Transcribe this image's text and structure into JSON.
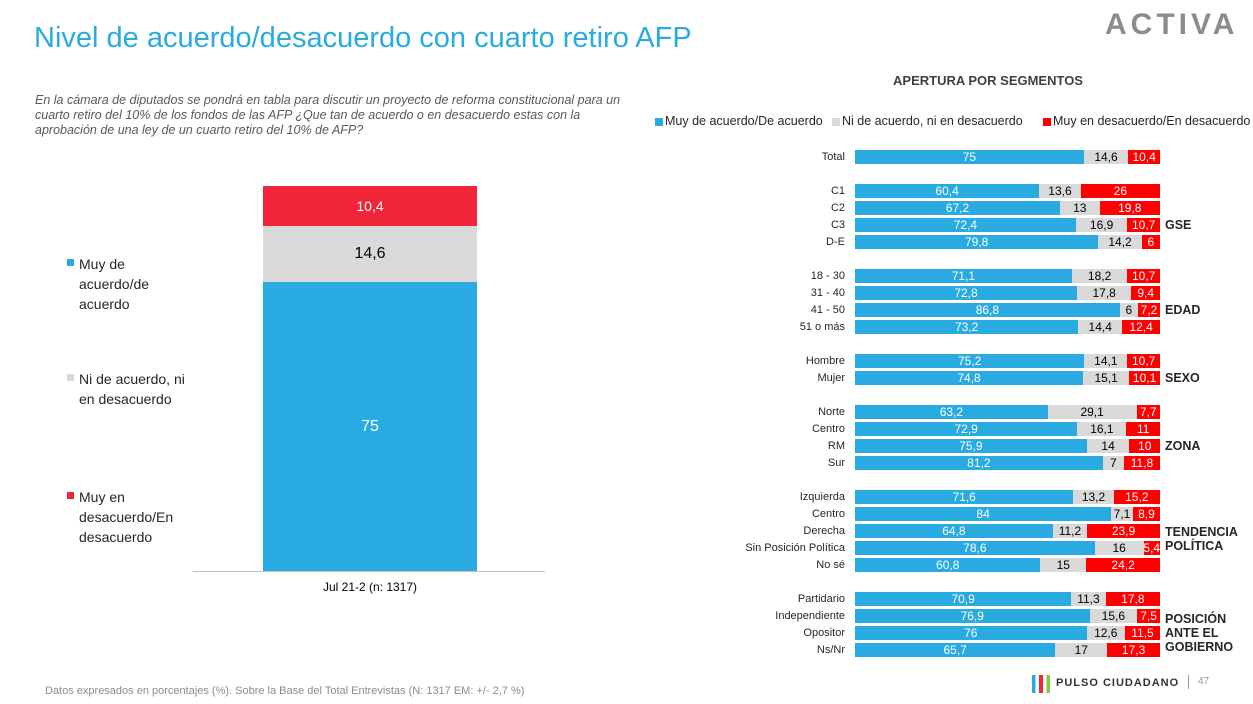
{
  "title": "Nivel de acuerdo/desacuerdo con cuarto retiro AFP",
  "logo": "ACTIVA",
  "question": "En la cámara de diputados se pondrá en tabla para discutir un proyecto de reforma constitucional para un cuarto retiro del 10% de los fondos de las AFP ¿Que tan de acuerdo o en desacuerdo estas con la aprobación de una ley de un cuarto retiro del 10% de AFP?",
  "footnote": "Datos expresados en porcentajes (%). Sobre la Base del Total Entrevistas (N: 1317  EM: +/- 2,7 %)",
  "brand": "PULSO CIUDADANO",
  "page_number": "47",
  "chart_data": [
    {
      "type": "stacked_bar",
      "categories": [
        "Jul 21-2 (n: 1317)"
      ],
      "series": [
        {
          "name": "Muy de acuerdo/de acuerdo",
          "color": "#29abe2",
          "values": [
            75
          ],
          "value_labels": [
            "75"
          ]
        },
        {
          "name": "Ni de acuerdo, ni en desacuerdo",
          "color": "#d9d9d9",
          "values": [
            14.6
          ],
          "value_labels": [
            "14,6"
          ]
        },
        {
          "name": "Muy en desacuerdo/En desacuerdo",
          "color": "#f0253a",
          "values": [
            10.4
          ],
          "value_labels": [
            "10,4"
          ]
        }
      ]
    },
    {
      "type": "stacked_barh",
      "title": "APERTURA POR SEGMENTOS",
      "group_labels": [
        null,
        "GSE",
        "EDAD",
        "SEXO",
        "ZONA",
        "TENDENCIA POLÍTICA",
        "POSICIÓN ANTE EL GOBIERNO"
      ],
      "categories": [
        [
          "Total"
        ],
        [
          "C1",
          "C2",
          "C3",
          "D-E"
        ],
        [
          "18 - 30",
          "31 - 40",
          "41 - 50",
          "51 o más"
        ],
        [
          "Hombre",
          "Mujer"
        ],
        [
          "Norte",
          "Centro",
          "RM",
          "Sur"
        ],
        [
          "Izquierda",
          "Centro",
          "Derecha",
          "Sin Posición Política",
          "No sé"
        ],
        [
          "Partidario",
          "Independiente",
          "Opositor",
          "Ns/Nr"
        ]
      ],
      "series": [
        {
          "name": "Muy de acuerdo/De acuerdo",
          "color": "#29abe2",
          "values": [
            [
              75
            ],
            [
              60.4,
              67.2,
              72.4,
              79.8
            ],
            [
              71.1,
              72.8,
              86.8,
              73.2
            ],
            [
              75.2,
              74.8
            ],
            [
              63.2,
              72.9,
              75.9,
              81.2
            ],
            [
              71.6,
              84,
              64.8,
              78.6,
              60.8
            ],
            [
              70.9,
              76.9,
              76,
              65.7
            ]
          ],
          "value_labels": [
            [
              "75"
            ],
            [
              "60,4",
              "67,2",
              "72,4",
              "79,8"
            ],
            [
              "71,1",
              "72,8",
              "86,8",
              "73,2"
            ],
            [
              "75,2",
              "74,8"
            ],
            [
              "63,2",
              "72,9",
              "75,9",
              "81,2"
            ],
            [
              "71,6",
              "84",
              "64,8",
              "78,6",
              "60,8"
            ],
            [
              "70,9",
              "76,9",
              "76",
              "65,7"
            ]
          ]
        },
        {
          "name": "Ni de acuerdo, ni en desacuerdo",
          "color": "#d9d9d9",
          "values": [
            [
              14.6
            ],
            [
              13.6,
              13,
              16.9,
              14.2
            ],
            [
              18.2,
              17.8,
              6,
              14.4
            ],
            [
              14.1,
              15.1
            ],
            [
              29.1,
              16.1,
              14,
              7
            ],
            [
              13.2,
              7.1,
              11.2,
              16,
              15
            ],
            [
              11.3,
              15.6,
              12.6,
              17
            ]
          ],
          "value_labels": [
            [
              "14,6"
            ],
            [
              "13,6",
              "13",
              "16,9",
              "14,2"
            ],
            [
              "18,2",
              "17,8",
              "6",
              "14,4"
            ],
            [
              "14,1",
              "15,1"
            ],
            [
              "29,1",
              "16,1",
              "14",
              "7"
            ],
            [
              "13,2",
              "7,1",
              "11,2",
              "16",
              "15"
            ],
            [
              "11,3",
              "15,6",
              "12,6",
              "17"
            ]
          ]
        },
        {
          "name": "Muy en desacuerdo/En desacuerdo",
          "color": "#ff0000",
          "values": [
            [
              10.4
            ],
            [
              26,
              19.8,
              10.7,
              6
            ],
            [
              10.7,
              9.4,
              7.2,
              12.4
            ],
            [
              10.7,
              10.1
            ],
            [
              7.7,
              11,
              10,
              11.8
            ],
            [
              15.2,
              8.9,
              23.9,
              5.4,
              24.2
            ],
            [
              17.8,
              7.5,
              11.5,
              17.3
            ]
          ],
          "value_labels": [
            [
              "10,4"
            ],
            [
              "26",
              "19,8",
              "10,7",
              "6"
            ],
            [
              "10,7",
              "9,4",
              "7,2",
              "12,4"
            ],
            [
              "10,7",
              "10,1"
            ],
            [
              "7,7",
              "11",
              "10",
              "11,8"
            ],
            [
              "15,2",
              "8,9",
              "23,9",
              "5,4",
              "24,2"
            ],
            [
              "17,8",
              "7,5",
              "11,5",
              "17,3"
            ]
          ]
        }
      ]
    }
  ]
}
